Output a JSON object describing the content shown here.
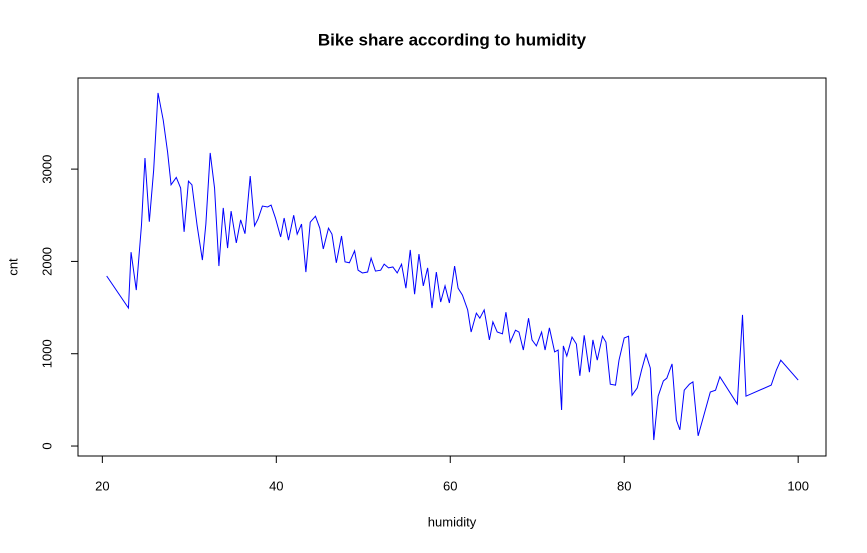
{
  "chart_data": {
    "type": "line",
    "title": "Bike share according to humidity",
    "xlabel": "humidity",
    "ylabel": "cnt",
    "x": [
      20.5,
      23.0,
      23.3,
      23.9,
      24.5,
      24.9,
      25.4,
      25.9,
      26.4,
      27.0,
      27.5,
      27.9,
      28.5,
      29.0,
      29.4,
      29.9,
      30.3,
      30.9,
      31.5,
      31.9,
      32.4,
      32.9,
      33.4,
      33.9,
      34.4,
      34.8,
      35.4,
      35.9,
      36.4,
      37.0,
      37.5,
      37.9,
      38.4,
      39.0,
      39.4,
      39.9,
      40.5,
      40.9,
      41.4,
      42.0,
      42.4,
      42.9,
      43.4,
      43.9,
      44.5,
      45.0,
      45.4,
      46.0,
      46.4,
      46.9,
      47.5,
      47.9,
      48.4,
      49.0,
      49.4,
      49.9,
      50.5,
      50.9,
      51.4,
      52.0,
      52.4,
      52.9,
      53.4,
      53.9,
      54.4,
      54.9,
      55.4,
      55.9,
      56.4,
      56.9,
      57.4,
      57.9,
      58.4,
      58.9,
      59.4,
      59.9,
      60.5,
      60.9,
      61.4,
      62.0,
      62.4,
      63.0,
      63.4,
      63.9,
      64.5,
      64.9,
      65.4,
      66.0,
      66.4,
      66.9,
      67.5,
      67.9,
      68.4,
      69.0,
      69.4,
      69.9,
      70.5,
      70.9,
      71.4,
      72.0,
      72.4,
      72.8,
      73.0,
      73.4,
      74.0,
      74.5,
      74.9,
      75.4,
      76.0,
      76.4,
      76.9,
      77.5,
      77.9,
      78.4,
      79.0,
      79.4,
      80.0,
      80.5,
      80.9,
      81.5,
      82.0,
      82.5,
      83.0,
      83.4,
      83.9,
      84.5,
      84.9,
      85.5,
      86.0,
      86.4,
      86.9,
      87.5,
      87.9,
      88.5,
      89.9,
      90.5,
      91.0,
      93.0,
      93.6,
      94.0,
      96.9,
      97.5,
      98.0,
      100.0
    ],
    "series": [
      {
        "name": "cnt",
        "color": "#0000ff",
        "values": [
          1842,
          1495,
          2100,
          1690,
          2395,
          3120,
          2430,
          2990,
          3825,
          3530,
          3185,
          2830,
          2910,
          2795,
          2320,
          2870,
          2830,
          2385,
          2015,
          2405,
          3175,
          2795,
          1950,
          2580,
          2145,
          2545,
          2200,
          2450,
          2300,
          2925,
          2385,
          2460,
          2600,
          2590,
          2610,
          2470,
          2265,
          2470,
          2230,
          2500,
          2295,
          2405,
          1885,
          2425,
          2490,
          2360,
          2135,
          2360,
          2295,
          1985,
          2275,
          1995,
          1985,
          2115,
          1905,
          1875,
          1885,
          2035,
          1895,
          1905,
          1970,
          1930,
          1940,
          1875,
          1970,
          1710,
          2125,
          1645,
          2080,
          1735,
          1930,
          1495,
          1885,
          1560,
          1735,
          1550,
          1950,
          1710,
          1635,
          1475,
          1235,
          1440,
          1385,
          1475,
          1150,
          1345,
          1235,
          1215,
          1450,
          1125,
          1255,
          1235,
          1040,
          1385,
          1150,
          1085,
          1235,
          1040,
          1280,
          1020,
          1040,
          390,
          1085,
          975,
          1180,
          1105,
          760,
          1200,
          800,
          1150,
          930,
          1190,
          1125,
          670,
          660,
          930,
          1170,
          1190,
          550,
          630,
          825,
          995,
          845,
          65,
          540,
          705,
          735,
          890,
          280,
          175,
          605,
          670,
          695,
          110,
          585,
          605,
          750,
          455,
          1420,
          540,
          660,
          825,
          930,
          715
        ]
      }
    ],
    "xlim": [
      17.2,
      103.2
    ],
    "xticks": [
      20,
      40,
      60,
      80,
      100
    ],
    "ylim": [
      -108,
      3987
    ],
    "yticks": [
      0,
      1000,
      2000,
      3000
    ],
    "grid": false
  }
}
